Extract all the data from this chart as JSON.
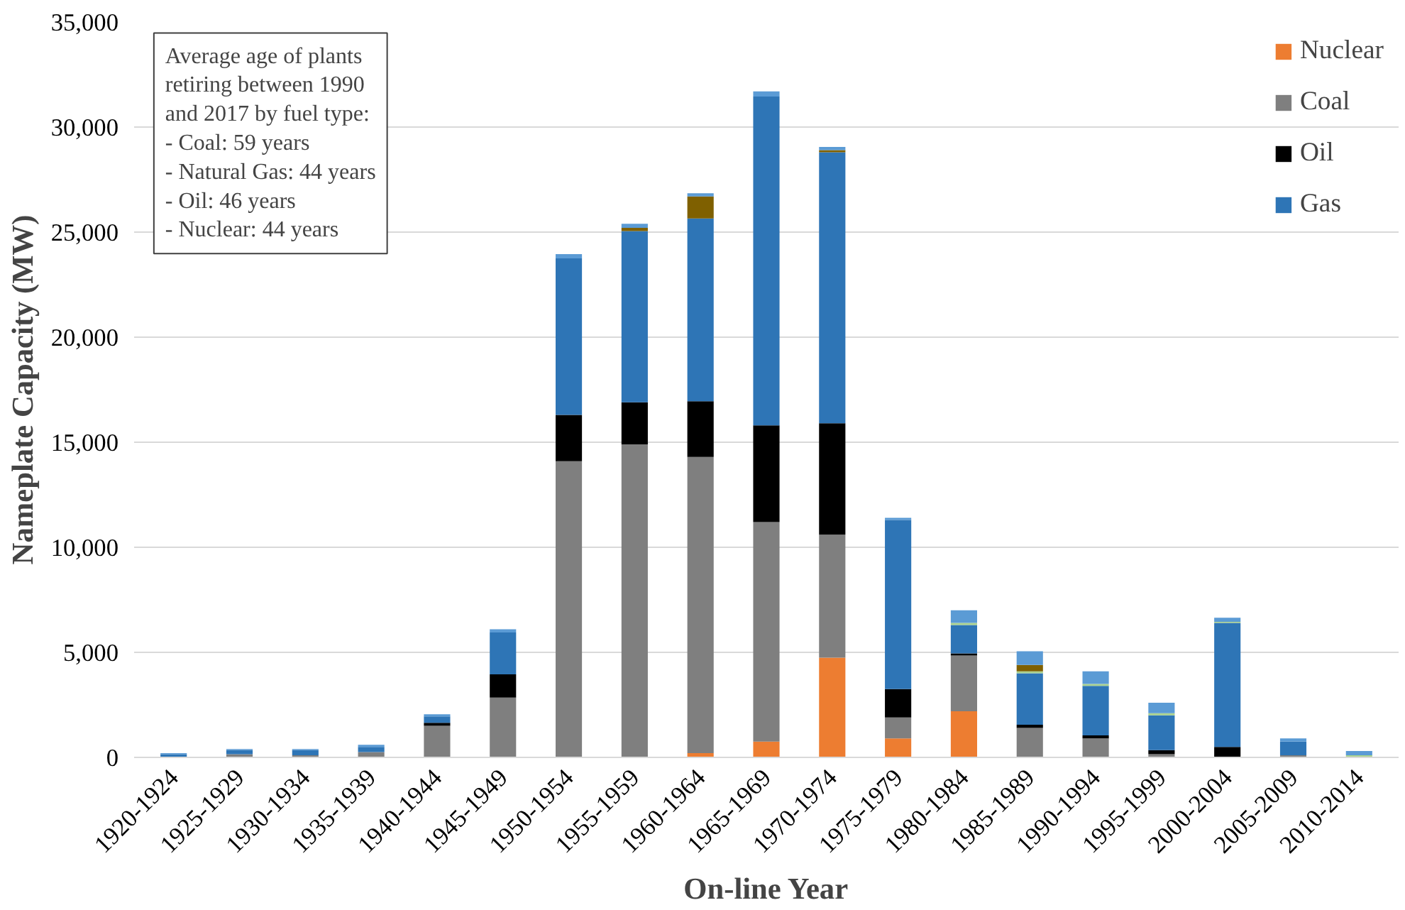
{
  "chart_data": {
    "type": "bar",
    "stacked": true,
    "xlabel": "On-line Year",
    "ylabel": "Nameplate Capacity (MW)",
    "categories": [
      "1920-1924",
      "1925-1929",
      "1930-1934",
      "1935-1939",
      "1940-1944",
      "1945-1949",
      "1950-1954",
      "1955-1959",
      "1960-1964",
      "1965-1969",
      "1970-1974",
      "1975-1979",
      "1980-1984",
      "1985-1989",
      "1990-1994",
      "1995-1999",
      "2000-2004",
      "2005-2009",
      "2010-2014"
    ],
    "series": [
      {
        "name": "Nuclear",
        "color": "#ed7d31",
        "values": [
          0,
          0,
          0,
          0,
          0,
          0,
          0,
          0,
          200,
          750,
          4750,
          900,
          2200,
          0,
          0,
          0,
          0,
          0,
          0
        ]
      },
      {
        "name": "Coal",
        "color": "#7f7f7f",
        "values": [
          0,
          150,
          100,
          250,
          1500,
          2850,
          14100,
          14900,
          14100,
          10450,
          5850,
          1000,
          2650,
          1400,
          900,
          150,
          0,
          100,
          0
        ]
      },
      {
        "name": "Oil",
        "color": "#000000",
        "values": [
          0,
          0,
          0,
          0,
          150,
          1100,
          2200,
          2000,
          2650,
          4600,
          5300,
          1350,
          100,
          150,
          150,
          200,
          500,
          0,
          0
        ]
      },
      {
        "name": "Gas",
        "color": "#2e75b6",
        "values": [
          150,
          200,
          250,
          250,
          300,
          2000,
          7450,
          8150,
          8700,
          15650,
          12900,
          8050,
          1350,
          2450,
          2350,
          1650,
          5900,
          650,
          0
        ]
      },
      {
        "color": "#a9d18e",
        "values": [
          0,
          0,
          0,
          0,
          0,
          0,
          0,
          0,
          0,
          0,
          0,
          0,
          100,
          100,
          100,
          100,
          50,
          0,
          100
        ]
      },
      {
        "color": "#7f6000",
        "values": [
          0,
          0,
          0,
          0,
          0,
          0,
          0,
          150,
          1050,
          0,
          100,
          0,
          0,
          300,
          0,
          0,
          0,
          0,
          0
        ]
      },
      {
        "color": "#5b9bd5",
        "values": [
          50,
          50,
          50,
          100,
          100,
          150,
          200,
          200,
          150,
          250,
          150,
          100,
          600,
          650,
          600,
          500,
          200,
          150,
          200
        ]
      }
    ],
    "ylim": [
      0,
      35000
    ],
    "yticks": [
      {
        "value": 0,
        "label": "0"
      },
      {
        "value": 5000,
        "label": "5,000"
      },
      {
        "value": 10000,
        "label": "10,000"
      },
      {
        "value": 15000,
        "label": "15,000"
      },
      {
        "value": 20000,
        "label": "20,000"
      },
      {
        "value": 25000,
        "label": "25,000"
      },
      {
        "value": 30000,
        "label": "30,000"
      },
      {
        "value": 35000,
        "label": "35,000"
      }
    ],
    "grid": "y",
    "legend": "right",
    "annotations": [
      "Average age of plants\nretiring between 1990\nand 2017 by fuel type:\n- Coal: 59 years\n- Natural Gas: 44 years\n- Oil: 46 years\n- Nuclear: 44 years"
    ]
  }
}
